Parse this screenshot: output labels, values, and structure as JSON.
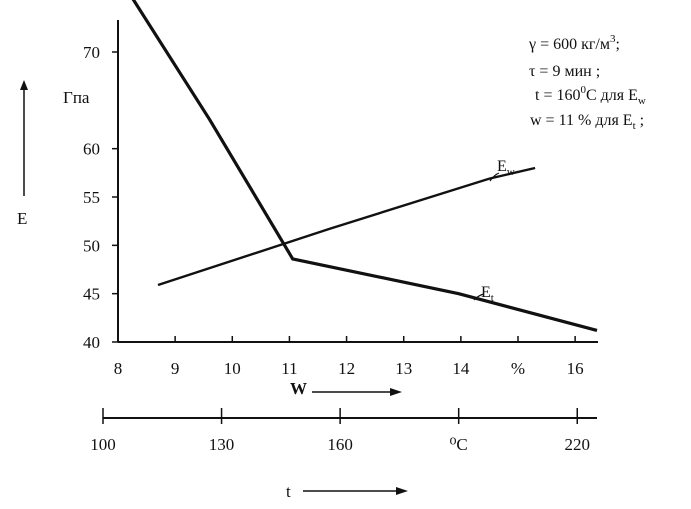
{
  "chart_data": {
    "type": "line",
    "ylabel": "E",
    "y_unit": "Гпа",
    "ylim": [
      40,
      75
    ],
    "y_ticks": [
      40,
      45,
      50,
      55,
      60,
      70
    ],
    "x_moisture": {
      "label": "W",
      "range": [
        8,
        16.4
      ],
      "ticks": [
        "8",
        "9",
        "10",
        "11",
        "12",
        "13",
        "14",
        "%",
        "16"
      ]
    },
    "x_temperature": {
      "label": "t",
      "range": [
        100,
        225
      ],
      "ticks": [
        "100",
        "130",
        "160",
        "⁰C",
        "220"
      ]
    },
    "series": [
      {
        "name": "Ew",
        "x_axis": "moisture",
        "points": [
          [
            8.7,
            45.9
          ],
          [
            11.7,
            51.7
          ],
          [
            14.5,
            56.9
          ],
          [
            15.3,
            58.0
          ]
        ]
      },
      {
        "name": "Et",
        "x_axis": "temperature",
        "points": [
          [
            106,
            76.5
          ],
          [
            127,
            63
          ],
          [
            148,
            48.6
          ],
          [
            190,
            45.0
          ],
          [
            225,
            41.2
          ]
        ]
      }
    ],
    "conditions": {
      "gamma": "γ = 600 кг/м³;",
      "tau": "τ = 9 мин ;",
      "t": "t = 160⁰C для Ew",
      "w": "w = 11 % для Et ;"
    }
  }
}
